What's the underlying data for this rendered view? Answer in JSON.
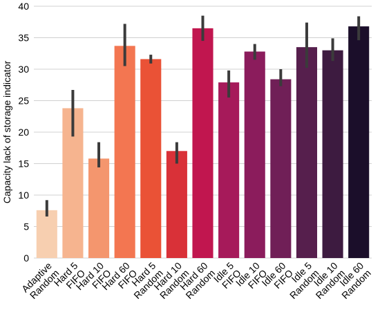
{
  "chart_data": {
    "type": "bar",
    "title": "",
    "xlabel": "",
    "ylabel": "Capacity lack of storage indicator",
    "ylim": [
      0,
      40
    ],
    "yticks": [
      0,
      5,
      10,
      15,
      20,
      25,
      30,
      35,
      40
    ],
    "grid": "horizontal",
    "legend": "none",
    "categories": [
      [
        "Adaptive",
        "Random"
      ],
      [
        "Hard 5",
        "FIFO"
      ],
      [
        "Hard 10",
        "FIFO"
      ],
      [
        "Hard 60",
        "FIFO"
      ],
      [
        "Hard 5",
        "Random"
      ],
      [
        "Hard 10",
        "Random"
      ],
      [
        "Hard 60",
        "Random"
      ],
      [
        "Idle 5",
        "FIFO"
      ],
      [
        "Idle 10",
        "FIFO"
      ],
      [
        "Idle 60",
        "FIFO"
      ],
      [
        "Idle 5",
        "Random"
      ],
      [
        "Idle 10",
        "Random"
      ],
      [
        "Idle 60",
        "Random"
      ]
    ],
    "values": [
      7.6,
      23.8,
      15.8,
      33.7,
      31.6,
      17.0,
      36.5,
      27.9,
      32.8,
      28.4,
      33.5,
      33.0,
      36.8
    ],
    "error_low": [
      6.6,
      19.3,
      14.4,
      30.5,
      30.9,
      15.0,
      34.5,
      25.5,
      31.5,
      27.3,
      30.2,
      31.3,
      34.6
    ],
    "error_high": [
      9.2,
      26.7,
      18.4,
      37.2,
      32.3,
      18.4,
      38.5,
      29.8,
      34.0,
      30.0,
      37.4,
      34.9,
      38.4
    ],
    "colors": [
      "#f7cfb0",
      "#f6b48f",
      "#f4966e",
      "#f37651",
      "#ea5236",
      "#d93138",
      "#c1164f",
      "#a61a5a",
      "#8b1c5c",
      "#701f57",
      "#561f4d",
      "#3d1b40",
      "#1b0e2a"
    ]
  }
}
